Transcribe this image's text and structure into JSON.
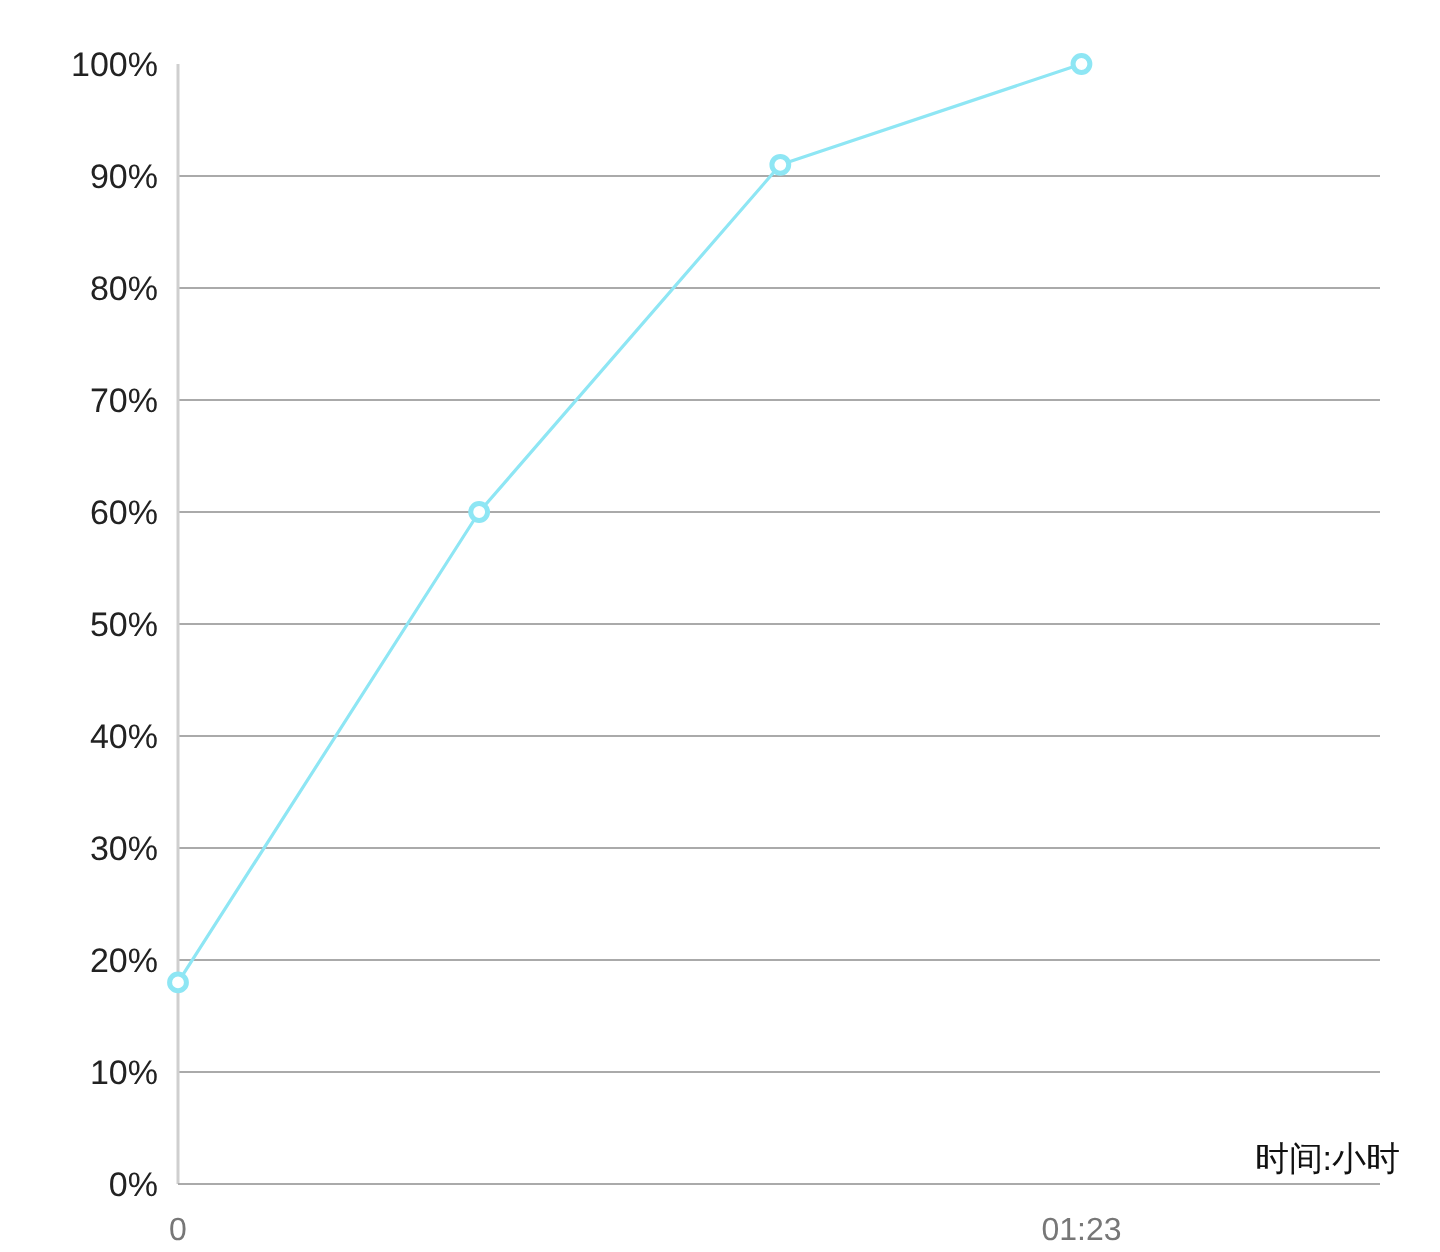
{
  "chart_data": {
    "type": "line",
    "xlabel": "时间:小时",
    "x": [
      0,
      0.461,
      0.922,
      1.383
    ],
    "series": [
      {
        "color": "#8ee6f4",
        "values": [
          18,
          60,
          91,
          100
        ]
      }
    ],
    "xlim": [
      0,
      1.84
    ],
    "xticks": [
      0,
      {
        "value": 1.383,
        "label": "01:23"
      }
    ],
    "ylim": [
      0,
      100
    ],
    "yticks": [
      {
        "value": 0,
        "label": "0%"
      },
      {
        "value": 10,
        "label": "10%"
      },
      {
        "value": 20,
        "label": "20%"
      },
      {
        "value": 30,
        "label": "30%"
      },
      {
        "value": 40,
        "label": "40%"
      },
      {
        "value": 50,
        "label": "50%"
      },
      {
        "value": 60,
        "label": "60%"
      },
      {
        "value": 70,
        "label": "70%"
      },
      {
        "value": 80,
        "label": "80%"
      },
      {
        "value": 90,
        "label": "90%"
      },
      {
        "value": 100,
        "label": "100%"
      }
    ],
    "grid": "y",
    "marker": "circle",
    "line_style": "solid"
  }
}
